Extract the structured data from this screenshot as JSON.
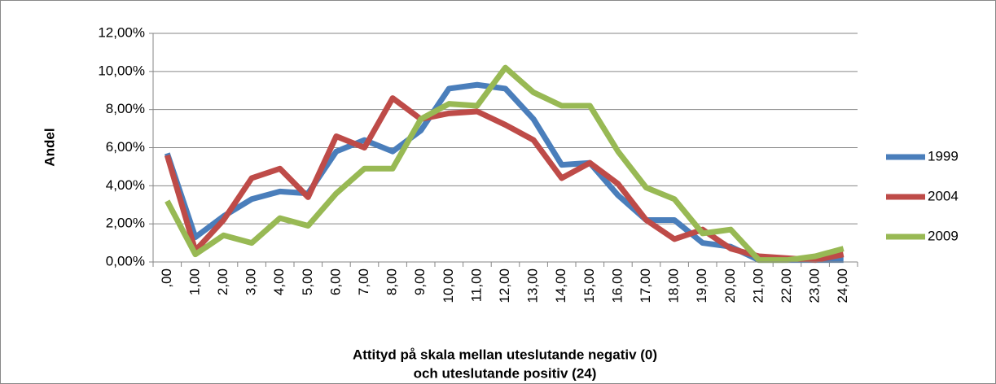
{
  "chart_data": {
    "type": "line",
    "ylabel": "Andel",
    "xlabel": [
      "Attityd på skala mellan uteslutande negativ (0)",
      "och uteslutande positiv (24)"
    ],
    "categories": [
      ",00",
      "1,00",
      "2,00",
      "3,00",
      "4,00",
      "5,00",
      "6,00",
      "7,00",
      "8,00",
      "9,00",
      "10,00",
      "11,00",
      "12,00",
      "13,00",
      "14,00",
      "15,00",
      "16,00",
      "17,00",
      "18,00",
      "19,00",
      "20,00",
      "21,00",
      "22,00",
      "23,00",
      "24,00"
    ],
    "series": [
      {
        "name": "1999",
        "color": "#4a7ebb",
        "values": [
          5.7,
          1.3,
          2.4,
          3.3,
          3.7,
          3.6,
          5.8,
          6.4,
          5.8,
          6.9,
          9.1,
          9.3,
          9.1,
          7.5,
          5.1,
          5.2,
          3.5,
          2.2,
          2.2,
          1.0,
          0.8,
          0.1,
          0.1,
          0.1,
          0.1
        ]
      },
      {
        "name": "2004",
        "color": "#be4b48",
        "values": [
          5.6,
          0.6,
          2.2,
          4.4,
          4.9,
          3.4,
          6.6,
          6.0,
          8.6,
          7.5,
          7.8,
          7.9,
          7.2,
          6.4,
          4.4,
          5.2,
          4.1,
          2.2,
          1.2,
          1.7,
          0.7,
          0.3,
          0.2,
          0.1,
          0.4
        ]
      },
      {
        "name": "2009",
        "color": "#98b954",
        "values": [
          3.2,
          0.4,
          1.4,
          1.0,
          2.3,
          1.9,
          3.6,
          4.9,
          4.9,
          7.5,
          8.3,
          8.2,
          10.2,
          8.9,
          8.2,
          8.2,
          5.8,
          3.9,
          3.3,
          1.5,
          1.7,
          0.1,
          0.1,
          0.3,
          0.7
        ]
      }
    ],
    "ylim": [
      0,
      12
    ],
    "yticks": [
      {
        "value": 0,
        "label": "0,00%"
      },
      {
        "value": 2,
        "label": "2,00%"
      },
      {
        "value": 4,
        "label": "4,00%"
      },
      {
        "value": 6,
        "label": "6,00%"
      },
      {
        "value": 8,
        "label": "8,00%"
      },
      {
        "value": 10,
        "label": "10,00%"
      },
      {
        "value": 12,
        "label": "12,00%"
      }
    ],
    "grid": true,
    "legend": "right"
  }
}
